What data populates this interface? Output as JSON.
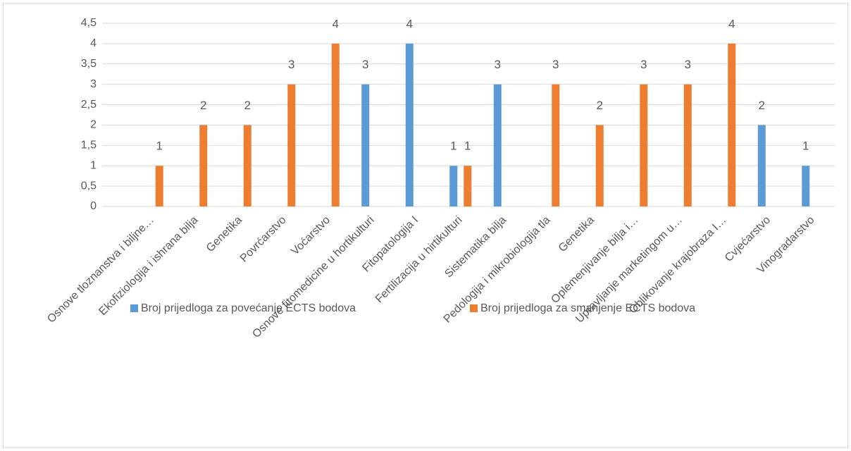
{
  "chart_data": {
    "type": "bar",
    "categories": [
      "Osnove tloznanstva i biljne…",
      "Ekofiziologija i ishrana bilja",
      "Genetika",
      "Povrćarstvo",
      "Voćarstvo",
      "Osnove fitomedicine u hortikulturi",
      "Fitopatologija I",
      "Fertilizacija u hirtikulturi",
      "Sistematika bilja",
      "Pedologija i mikrobiologija tla",
      "Genetika",
      "Oplemenjivanje bilja i…",
      "Upravljanje marketingom u…",
      "Oblikovanje krajobraza I…",
      "Cvjećarstvo",
      "Vinogradarstvo"
    ],
    "series": [
      {
        "name": "Broj prijedloga za povećanje ECTS bodova",
        "color": "#5b9bd5",
        "values": [
          null,
          null,
          null,
          null,
          null,
          3,
          4,
          1,
          3,
          null,
          null,
          null,
          null,
          null,
          2,
          1
        ]
      },
      {
        "name": "Broj prijedloga za smanjenje ECTS bodova",
        "color": "#ed7d31",
        "values": [
          1,
          2,
          2,
          3,
          4,
          null,
          null,
          1,
          null,
          3,
          2,
          3,
          3,
          4,
          null,
          null
        ]
      }
    ],
    "ylim": [
      0,
      4.5
    ],
    "yticks": [
      0,
      {
        "value": 0.5,
        "label": "0,5"
      },
      1,
      {
        "value": 1.5,
        "label": "1,5"
      },
      2,
      {
        "value": 2.5,
        "label": "2,5"
      },
      3,
      {
        "value": 3.5,
        "label": "3,5"
      },
      4,
      {
        "value": 4.5,
        "label": "4,5"
      }
    ],
    "grid": true,
    "legend": "bottom"
  }
}
